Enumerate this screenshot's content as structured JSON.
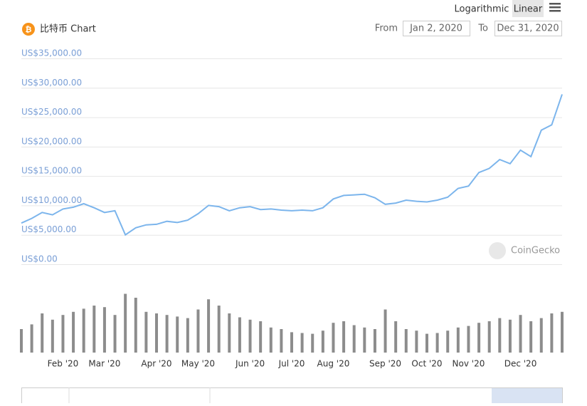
{
  "toolbar": {
    "scale_options": [
      "Logarithmic",
      "Linear"
    ],
    "from_label": "From",
    "from_date": "Jan 2, 2020",
    "to_label": "To",
    "to_date": "Dec 31, 2020"
  },
  "watermark": "CoinGecko",
  "chart_data": {
    "type": "line",
    "title": "比特币 Chart",
    "log_scale": false,
    "grid": true,
    "categories": [
      null,
      null,
      null,
      null,
      "Feb '20",
      null,
      null,
      null,
      "Mar '20",
      null,
      null,
      null,
      null,
      "Apr '20",
      null,
      null,
      null,
      "May '20",
      null,
      null,
      null,
      null,
      "Jun '20",
      null,
      null,
      null,
      "Jul '20",
      null,
      null,
      null,
      "Aug '20",
      null,
      null,
      null,
      null,
      "Sep '20",
      null,
      null,
      null,
      "Oct '20",
      null,
      null,
      null,
      "Nov '20",
      null,
      null,
      null,
      null,
      "Dec '20",
      null,
      null,
      null,
      null
    ],
    "series": [
      {
        "color": "#7cb5ec",
        "values": [
          7000,
          7800,
          8800,
          8400,
          9400,
          9700,
          10300,
          9600,
          8800,
          9100,
          5000,
          6200,
          6700,
          6800,
          7300,
          7100,
          7500,
          8600,
          10000,
          9800,
          9100,
          9600,
          9800,
          9300,
          9400,
          9200,
          9100,
          9200,
          9100,
          9600,
          11100,
          11700,
          11800,
          11900,
          11300,
          10200,
          10400,
          10900,
          10700,
          10600,
          10900,
          11400,
          12900,
          13300,
          15600,
          16300,
          17800,
          17100,
          19400,
          18300,
          22800,
          23700,
          28900
        ]
      }
    ],
    "volume": {
      "color": "#8c8c8c",
      "values": [
        30,
        36,
        50,
        42,
        48,
        52,
        56,
        60,
        58,
        48,
        75,
        70,
        52,
        50,
        48,
        46,
        44,
        55,
        68,
        60,
        50,
        45,
        42,
        40,
        32,
        30,
        26,
        25,
        24,
        28,
        38,
        40,
        35,
        32,
        30,
        55,
        40,
        30,
        28,
        24,
        25,
        28,
        32,
        34,
        38,
        40,
        44,
        42,
        48,
        40,
        44,
        50,
        52
      ]
    },
    "ylim": [
      0,
      35000
    ],
    "yticks": [
      {
        "value": 0,
        "label": "US$0.00"
      },
      {
        "value": 5000,
        "label": "US$5,000.00"
      },
      {
        "value": 10000,
        "label": "US$10,000.00"
      },
      {
        "value": 15000,
        "label": "US$15,000.00"
      },
      {
        "value": 20000,
        "label": "US$20,000.00"
      },
      {
        "value": 25000,
        "label": "US$25,000.00"
      },
      {
        "value": 30000,
        "label": "US$30,000.00"
      },
      {
        "value": 35000,
        "label": "US$35,000.00"
      }
    ]
  }
}
